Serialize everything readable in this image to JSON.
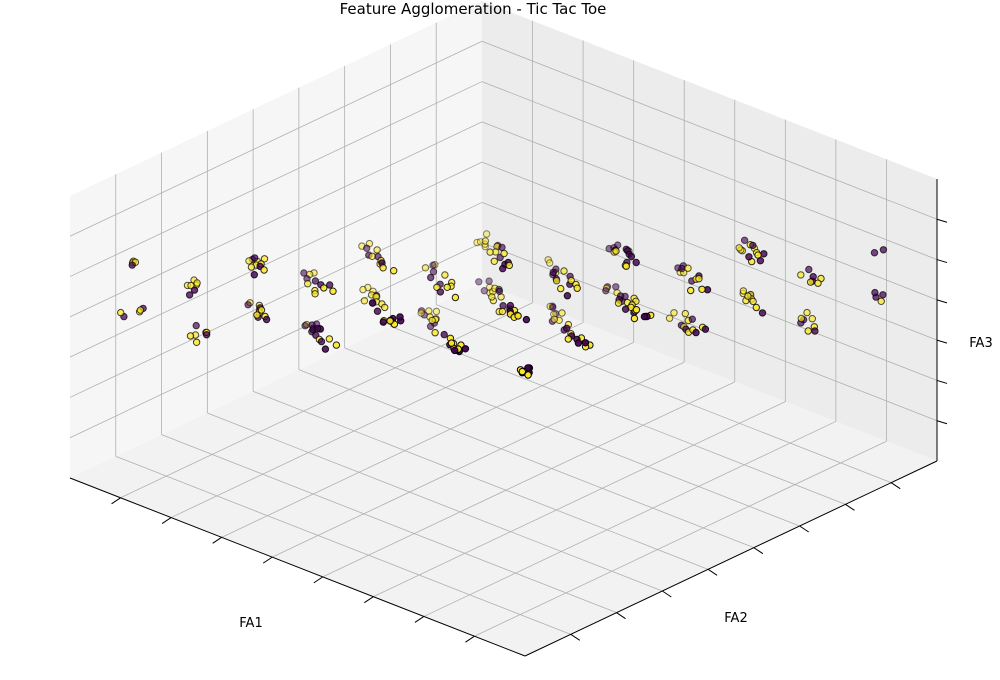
{
  "chart_data": {
    "type": "scatter",
    "projection": "3d",
    "title": "Feature Agglomeration - Tic Tac Toe",
    "xlabel": "FA1",
    "ylabel": "FA2",
    "zlabel": "FA3",
    "grid": true,
    "tick_labels_shown": false,
    "pane_color": "#f2f2f2",
    "grid_color": "#b0b0b0",
    "marker_edge_color": "#000000",
    "class_colors": {
      "0": "#440154",
      "1": "#fde725"
    },
    "point_pattern": {
      "fa1_levels": [
        1,
        2,
        3,
        4,
        5,
        6,
        7
      ],
      "fa2_levels": [
        1,
        2,
        3,
        4,
        5,
        6,
        7
      ],
      "fa3_levels": [
        1,
        2,
        3,
        4,
        5,
        6
      ],
      "fa3_base_by_fa1_plus_fa2": {
        "2": 1,
        "3": 1,
        "4": 2,
        "5": 2,
        "6": 3,
        "7": 3,
        "8": 4,
        "9": 4,
        "10": 5,
        "11": 5,
        "12": 6,
        "13": 6,
        "14": 6
      },
      "fa3_spread": 2,
      "jitter": 0.1
    }
  }
}
